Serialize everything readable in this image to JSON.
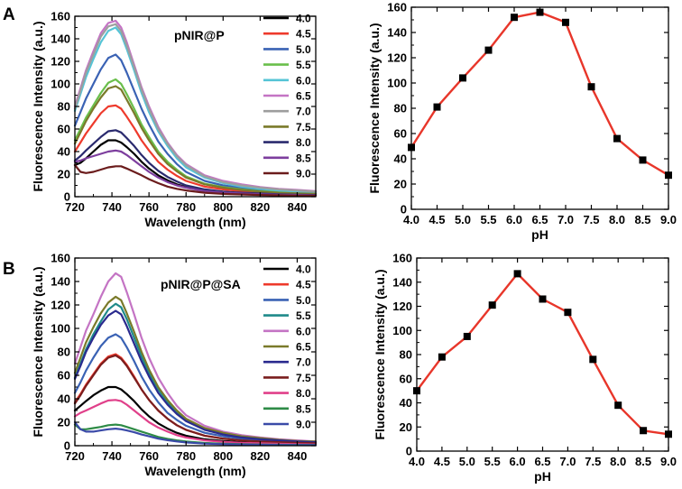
{
  "figure": {
    "panels": [
      {
        "id": "A",
        "letter": "A",
        "charts": [
          0,
          1
        ]
      },
      {
        "id": "B",
        "letter": "B",
        "charts": [
          2,
          3
        ]
      }
    ]
  },
  "chart_data": [
    {
      "id": "A-spectra",
      "type": "line",
      "annotation": "pNIR@P",
      "xlabel": "Wavelength (nm)",
      "ylabel": "Fluorescence Intensity (a.u.)",
      "xlim": [
        720,
        850
      ],
      "ylim": [
        0,
        160
      ],
      "xticks": [
        720,
        740,
        760,
        780,
        800,
        820,
        840
      ],
      "yticks": [
        0,
        20,
        40,
        60,
        80,
        100,
        120,
        140,
        160
      ],
      "x": [
        720,
        723,
        726,
        730,
        734,
        738,
        742,
        745,
        748,
        752,
        756,
        760,
        765,
        770,
        775,
        780,
        790,
        800,
        810,
        820,
        830,
        840,
        850
      ],
      "series": [
        {
          "name": "4.0",
          "color": "#000000",
          "values": [
            28,
            30,
            34,
            40,
            46,
            50,
            50,
            48,
            44,
            38,
            31,
            25,
            19,
            14.5,
            11,
            8.5,
            5.5,
            4,
            3,
            2.5,
            2,
            1.5,
            1.5
          ]
        },
        {
          "name": "4.5",
          "color": "#ee3a2c",
          "values": [
            40,
            48,
            56,
            65,
            74,
            80,
            81,
            78,
            71,
            61,
            50,
            41,
            31,
            24,
            18.5,
            14,
            9,
            6.5,
            5,
            4,
            3,
            2.5,
            2
          ]
        },
        {
          "name": "5.0",
          "color": "#3a62b4",
          "values": [
            63,
            75,
            87,
            100,
            113,
            123,
            126,
            121,
            110,
            94,
            78,
            64,
            49,
            38,
            29,
            22,
            14,
            10,
            8,
            6,
            5,
            4,
            3
          ]
        },
        {
          "name": "5.5",
          "color": "#6abf4b",
          "values": [
            50,
            60,
            70,
            81,
            92,
            101,
            104,
            100,
            91,
            78,
            64,
            53,
            40,
            31,
            24,
            18,
            11.5,
            8.5,
            6.5,
            5,
            4,
            3,
            2.5
          ]
        },
        {
          "name": "6.0",
          "color": "#55c4d6",
          "values": [
            76,
            91,
            106,
            122,
            137,
            147,
            150,
            144,
            131,
            112,
            92,
            75,
            58,
            45,
            34,
            26,
            17,
            12,
            9,
            7,
            5.5,
            4.5,
            3.5
          ]
        },
        {
          "name": "6.5",
          "color": "#c474c4",
          "values": [
            80,
            96,
            112,
            129,
            145,
            154,
            156,
            150,
            137,
            117,
            97,
            80,
            62,
            48,
            37,
            29,
            19,
            14,
            11,
            8.5,
            7,
            6,
            5
          ]
        },
        {
          "name": "7.0",
          "color": "#9e9e9e",
          "values": [
            78,
            94,
            110,
            126,
            142,
            151,
            153,
            147,
            134,
            115,
            95,
            78,
            60,
            47,
            36,
            28,
            18,
            13,
            10,
            8,
            6.5,
            5.5,
            4.5
          ]
        },
        {
          "name": "7.5",
          "color": "#7a7a2a",
          "values": [
            47,
            57,
            67,
            78,
            88,
            96,
            98,
            95,
            86,
            74,
            61,
            50,
            38,
            29,
            22.5,
            17,
            11,
            8,
            6,
            4.5,
            3.5,
            3,
            2.5
          ]
        },
        {
          "name": "8.0",
          "color": "#2a2a6e",
          "values": [
            32,
            36,
            41,
            47,
            53,
            58,
            59,
            57,
            52,
            45,
            37,
            30,
            23,
            17.5,
            13.5,
            10,
            6.5,
            4.5,
            3.5,
            2.8,
            2.2,
            1.8,
            1.5
          ]
        },
        {
          "name": "8.5",
          "color": "#7d3e9e",
          "values": [
            31,
            32,
            34,
            36,
            38,
            40,
            41,
            40,
            37,
            32,
            27,
            22,
            17,
            13,
            10,
            8,
            5,
            3.5,
            2.8,
            2.2,
            1.8,
            1.5,
            1.2
          ]
        },
        {
          "name": "9.0",
          "color": "#6b1c1c",
          "values": [
            28,
            22,
            21,
            22,
            24,
            26,
            27,
            27,
            25,
            22,
            19,
            15.5,
            12,
            9,
            7,
            5.5,
            3.5,
            2.5,
            2,
            1.5,
            1.2,
            1,
            1
          ]
        }
      ]
    },
    {
      "id": "A-ph",
      "type": "line",
      "xlabel": "pH",
      "ylabel": "Fluorescence Intensity (a.u.)",
      "xlim": [
        4.0,
        9.0
      ],
      "ylim": [
        0,
        160
      ],
      "xticks": [
        4.0,
        4.5,
        5.0,
        5.5,
        6.0,
        6.5,
        7.0,
        7.5,
        8.0,
        8.5,
        9.0
      ],
      "xtick_labels": [
        "4.0",
        "4.5",
        "5.0",
        "5.5",
        "6.0",
        "6.5",
        "7.0",
        "7.5",
        "8.0",
        "8.5",
        "9.0"
      ],
      "yticks": [
        0,
        20,
        40,
        60,
        80,
        100,
        120,
        140,
        160
      ],
      "line_color": "#e8362a",
      "marker_color": "#000000",
      "x": [
        4.0,
        4.5,
        5.0,
        5.5,
        6.0,
        6.5,
        7.0,
        7.5,
        8.0,
        8.5,
        9.0
      ],
      "values": [
        49,
        81,
        104,
        126,
        152,
        156,
        148,
        97,
        56,
        39,
        27
      ]
    },
    {
      "id": "B-spectra",
      "type": "line",
      "annotation": "pNIR@P@SA",
      "xlabel": "Wavelength (nm)",
      "ylabel": "Fluorescence Intensity (a.u.)",
      "xlim": [
        720,
        850
      ],
      "ylim": [
        0,
        160
      ],
      "xticks": [
        720,
        740,
        760,
        780,
        800,
        820,
        840
      ],
      "yticks": [
        0,
        20,
        40,
        60,
        80,
        100,
        120,
        140,
        160
      ],
      "x": [
        720,
        723,
        726,
        730,
        734,
        738,
        742,
        745,
        748,
        752,
        756,
        760,
        765,
        770,
        775,
        780,
        790,
        800,
        810,
        820,
        830,
        840,
        850
      ],
      "series": [
        {
          "name": "4.0",
          "color": "#000000",
          "values": [
            30,
            34,
            38,
            43,
            47,
            50,
            50,
            48,
            44,
            38,
            31,
            25,
            19,
            14.5,
            11,
            8.5,
            5.5,
            4,
            3,
            2.5,
            2,
            1.5,
            1.5
          ]
        },
        {
          "name": "4.5",
          "color": "#ee3a2c",
          "values": [
            37,
            44,
            52,
            61,
            70,
            76,
            78,
            75,
            69,
            59,
            48,
            39,
            30,
            23,
            17.5,
            13.5,
            8.5,
            6,
            4.5,
            3.5,
            3,
            2.5,
            2
          ]
        },
        {
          "name": "5.0",
          "color": "#3a62b4",
          "values": [
            45,
            54,
            64,
            75,
            85,
            92,
            95,
            92,
            84,
            72,
            59,
            48,
            37,
            28,
            22,
            17,
            11,
            8,
            6,
            4.5,
            3.5,
            3,
            2.5
          ]
        },
        {
          "name": "5.5",
          "color": "#1f8a8a",
          "values": [
            58,
            70,
            82,
            95,
            106,
            116,
            121,
            118,
            108,
            92,
            76,
            62,
            48,
            37,
            28,
            22,
            14,
            10,
            8,
            6,
            5,
            4,
            3
          ]
        },
        {
          "name": "6.0",
          "color": "#c474c4",
          "values": [
            70,
            84,
            98,
            112,
            127,
            140,
            147,
            144,
            131,
            112,
            92,
            75,
            58,
            45,
            34,
            26,
            17,
            12,
            9,
            7,
            5.5,
            4.5,
            3.5
          ]
        },
        {
          "name": "6.5",
          "color": "#7a7a2a",
          "values": [
            62,
            75,
            88,
            101,
            113,
            122,
            127,
            124,
            113,
            97,
            80,
            65,
            50,
            39,
            30,
            23,
            15,
            11,
            8,
            6.5,
            5,
            4,
            3.5
          ]
        },
        {
          "name": "7.0",
          "color": "#2a2a8e",
          "values": [
            57,
            68,
            80,
            92,
            103,
            111,
            115,
            112,
            102,
            87,
            72,
            59,
            45,
            35,
            27,
            21,
            13.5,
            9.5,
            7,
            5.5,
            4.5,
            3.5,
            3
          ]
        },
        {
          "name": "7.5",
          "color": "#7a1e1e",
          "values": [
            36,
            43,
            51,
            60,
            69,
            75,
            77,
            74,
            68,
            58,
            48,
            39,
            30,
            23,
            17.5,
            13.5,
            8.5,
            6,
            4.5,
            3.5,
            3,
            2.5,
            2
          ]
        },
        {
          "name": "8.0",
          "color": "#e0408a",
          "values": [
            25,
            28,
            30,
            33,
            36,
            38.5,
            39,
            38,
            35,
            30,
            25,
            20,
            15.5,
            12,
            9,
            7,
            4.5,
            3.3,
            2.5,
            2,
            1.6,
            1.3,
            1
          ]
        },
        {
          "name": "8.5",
          "color": "#2e8b46",
          "values": [
            18,
            14,
            14,
            15,
            16,
            17.5,
            18,
            17.5,
            16,
            14,
            12,
            10,
            7.5,
            5.8,
            4.5,
            3.5,
            2.3,
            1.7,
            1.3,
            1,
            0.8,
            0.7,
            0.6
          ]
        },
        {
          "name": "9.0",
          "color": "#3a4aa8",
          "values": [
            20,
            14,
            12,
            12,
            13,
            14,
            14.5,
            14,
            13,
            11.5,
            9.5,
            8,
            6,
            4.7,
            3.6,
            2.8,
            1.8,
            1.3,
            1,
            0.8,
            0.6,
            0.5,
            0.5
          ]
        }
      ]
    },
    {
      "id": "B-ph",
      "type": "line",
      "xlabel": "pH",
      "ylabel": "Fluorescence Intensity (a.u.)",
      "xlim": [
        4.0,
        9.0
      ],
      "ylim": [
        0,
        160
      ],
      "xticks": [
        4.0,
        4.5,
        5.0,
        5.5,
        6.0,
        6.5,
        7.0,
        7.5,
        8.0,
        8.5,
        9.0
      ],
      "xtick_labels": [
        "4.0",
        "4.5",
        "5.0",
        "5.5",
        "6.0",
        "6.5",
        "7.0",
        "7.5",
        "8.0",
        "8.5",
        "9.0"
      ],
      "yticks": [
        0,
        20,
        40,
        60,
        80,
        100,
        120,
        140,
        160
      ],
      "line_color": "#e8362a",
      "marker_color": "#000000",
      "x": [
        4.0,
        4.5,
        5.0,
        5.5,
        6.0,
        6.5,
        7.0,
        7.5,
        8.0,
        8.5,
        9.0
      ],
      "values": [
        50,
        78,
        95,
        121,
        147,
        126,
        115,
        76,
        38,
        17,
        14
      ]
    }
  ]
}
